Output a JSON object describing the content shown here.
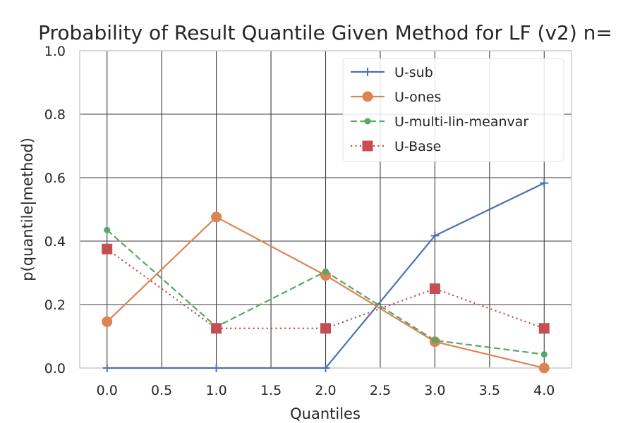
{
  "chart_data": {
    "type": "line",
    "title": "Probability of Result Quantile Given Method for LF (v2) n=",
    "xlabel": "Quantiles",
    "ylabel": "p(quantile|method)",
    "xlim": [
      -0.25,
      4.25
    ],
    "ylim": [
      0.0,
      1.0
    ],
    "grid": true,
    "legend_position": "top-right",
    "xticks": [
      0.0,
      0.5,
      1.0,
      1.5,
      2.0,
      2.5,
      3.0,
      3.5,
      4.0
    ],
    "xtick_labels": [
      "0.0",
      "0.5",
      "1.0",
      "1.5",
      "2.0",
      "2.5",
      "3.0",
      "3.5",
      "4.0"
    ],
    "yticks": [
      0.0,
      0.2,
      0.4,
      0.6,
      0.8,
      1.0
    ],
    "ytick_labels": [
      "0.0",
      "0.2",
      "0.4",
      "0.6",
      "0.8",
      "1.0"
    ],
    "x": [
      0,
      1,
      2,
      3,
      4
    ],
    "series": [
      {
        "name": "U-sub",
        "values": [
          0.0,
          0.0,
          0.0,
          0.417,
          0.583
        ],
        "color": "#4c72b0",
        "marker": "plus",
        "dash": "solid"
      },
      {
        "name": "U-ones",
        "values": [
          0.146,
          0.476,
          0.292,
          0.083,
          0.0
        ],
        "color": "#dd8452",
        "marker": "circle",
        "dash": "solid"
      },
      {
        "name": "U-multi-lin-meanvar",
        "values": [
          0.435,
          0.13,
          0.304,
          0.087,
          0.043
        ],
        "color": "#55a868",
        "marker": "dot",
        "dash": "dashed"
      },
      {
        "name": "U-Base",
        "values": [
          0.375,
          0.125,
          0.125,
          0.25,
          0.125
        ],
        "color": "#c44e52",
        "marker": "square",
        "dash": "dotted"
      }
    ]
  }
}
